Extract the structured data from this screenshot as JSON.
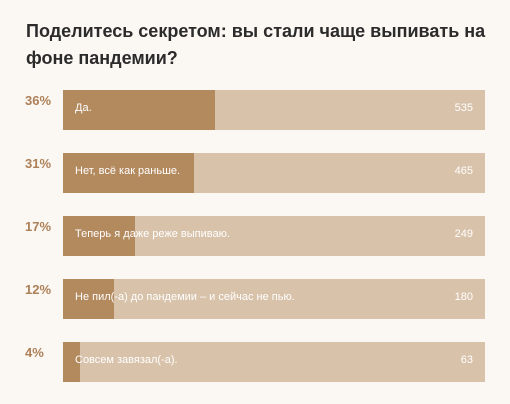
{
  "poll": {
    "question": "Поделитесь секретом: вы стали чаще выпивать на фоне пандемии?",
    "options": [
      {
        "percent": "36%",
        "label": "Да.",
        "votes": "535",
        "share": 0.36
      },
      {
        "percent": "31%",
        "label": "Нет, всё как раньше.",
        "votes": "465",
        "share": 0.31
      },
      {
        "percent": "17%",
        "label": "Теперь я даже реже выпиваю.",
        "votes": "249",
        "share": 0.17
      },
      {
        "percent": "12%",
        "label": "Не пил(-а) до пандемии – и сейчас не пью.",
        "votes": "180",
        "share": 0.12
      },
      {
        "percent": "4%",
        "label": "Совсем завязал(-а).",
        "votes": "63",
        "share": 0.04
      }
    ]
  },
  "colors": {
    "fill": "#b3895e",
    "track": "#d8c2aa",
    "percent_text": "#ad8058",
    "background": "#fbf7f3"
  }
}
